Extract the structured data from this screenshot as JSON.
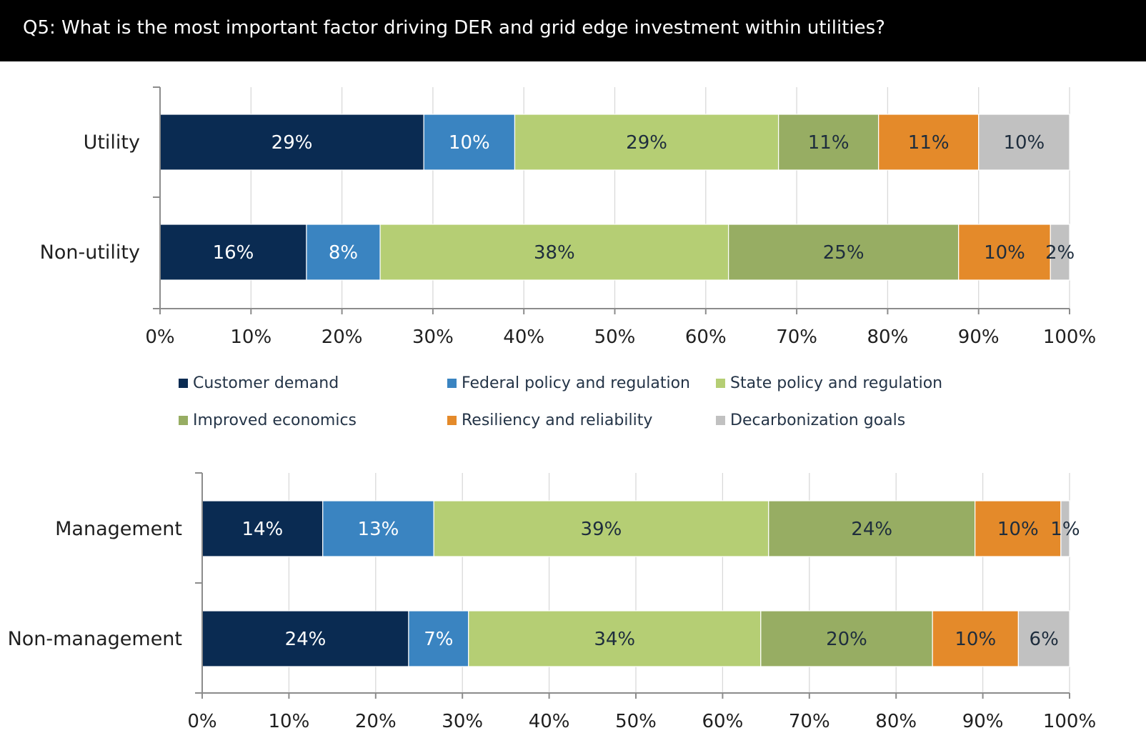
{
  "header": {
    "title": "Q5: What is the most important factor driving DER and grid edge investment within utilities?"
  },
  "legend": [
    {
      "label": "Customer demand",
      "color": "#0a2b52"
    },
    {
      "label": "Federal policy and regulation",
      "color": "#3a84c1"
    },
    {
      "label": "State policy and regulation",
      "color": "#b5ce74"
    },
    {
      "label": "Improved economics",
      "color": "#97ad63"
    },
    {
      "label": "Resiliency and reliability",
      "color": "#e48a2a"
    },
    {
      "label": "Decarbonization goals",
      "color": "#c1c1c1"
    }
  ],
  "chart_data": [
    {
      "type": "bar",
      "orientation": "horizontal",
      "stacked": true,
      "xlim": [
        0,
        100
      ],
      "xticks": [
        "0%",
        "10%",
        "20%",
        "30%",
        "40%",
        "50%",
        "60%",
        "70%",
        "80%",
        "90%",
        "100%"
      ],
      "grid": true,
      "categories": [
        "Utility",
        "Non-utility"
      ],
      "series": [
        {
          "name": "Customer demand",
          "values": [
            29,
            16.1
          ],
          "labels": [
            "29%",
            "16%"
          ]
        },
        {
          "name": "Federal policy and regulation",
          "values": [
            10,
            8.1
          ],
          "labels": [
            "10%",
            "8%"
          ]
        },
        {
          "name": "State policy and regulation",
          "values": [
            29,
            38.3
          ],
          "labels": [
            "29%",
            "38%"
          ]
        },
        {
          "name": "Improved economics",
          "values": [
            11,
            25.3
          ],
          "labels": [
            "11%",
            "25%"
          ]
        },
        {
          "name": "Resiliency and reliability",
          "values": [
            11,
            10.1
          ],
          "labels": [
            "11%",
            "10%"
          ]
        },
        {
          "name": "Decarbonization goals",
          "values": [
            10,
            2.1
          ],
          "labels": [
            "10%",
            "2%"
          ]
        }
      ]
    },
    {
      "type": "bar",
      "orientation": "horizontal",
      "stacked": true,
      "xlim": [
        0,
        100
      ],
      "xticks": [
        "0%",
        "10%",
        "20%",
        "30%",
        "40%",
        "50%",
        "60%",
        "70%",
        "80%",
        "90%",
        "100%"
      ],
      "grid": true,
      "categories": [
        "Management",
        "Non-management"
      ],
      "series": [
        {
          "name": "Customer demand",
          "values": [
            13.9,
            23.8
          ],
          "labels": [
            "14%",
            "24%"
          ]
        },
        {
          "name": "Federal policy and regulation",
          "values": [
            12.8,
            6.9
          ],
          "labels": [
            "13%",
            "7%"
          ]
        },
        {
          "name": "State policy and regulation",
          "values": [
            38.6,
            33.7
          ],
          "labels": [
            "39%",
            "34%"
          ]
        },
        {
          "name": "Improved economics",
          "values": [
            23.8,
            19.8
          ],
          "labels": [
            "24%",
            "20%"
          ]
        },
        {
          "name": "Resiliency and reliability",
          "values": [
            9.9,
            9.9
          ],
          "labels": [
            "10%",
            "10%"
          ]
        },
        {
          "name": "Decarbonization goals",
          "values": [
            1.0,
            5.9
          ],
          "labels": [
            "1%",
            "6%"
          ]
        }
      ]
    }
  ]
}
